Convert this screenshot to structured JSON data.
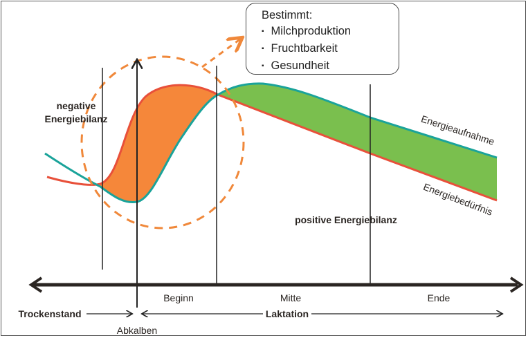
{
  "box": {
    "title": "Bestimmt:",
    "items": [
      "Milchproduktion",
      "Fruchtbarkeit",
      "Gesundheit"
    ]
  },
  "labels": {
    "negative": [
      "negative",
      "Energiebilanz"
    ],
    "positive": "positive Energiebilanz",
    "intake": "Energieaufnahme",
    "requirement": "Energiebedürfnis"
  },
  "axis": {
    "phases": [
      "Beginn",
      "Mitte",
      "Ende"
    ],
    "dry": "Trockenstand",
    "lactation": "Laktation",
    "calving": "Abkalben"
  },
  "colors": {
    "intake": "#1aa39a",
    "requirement": "#e8503a",
    "negative_fill": "#f5873a",
    "positive_fill": "#7abf4e",
    "circle": "#f0883a"
  }
}
